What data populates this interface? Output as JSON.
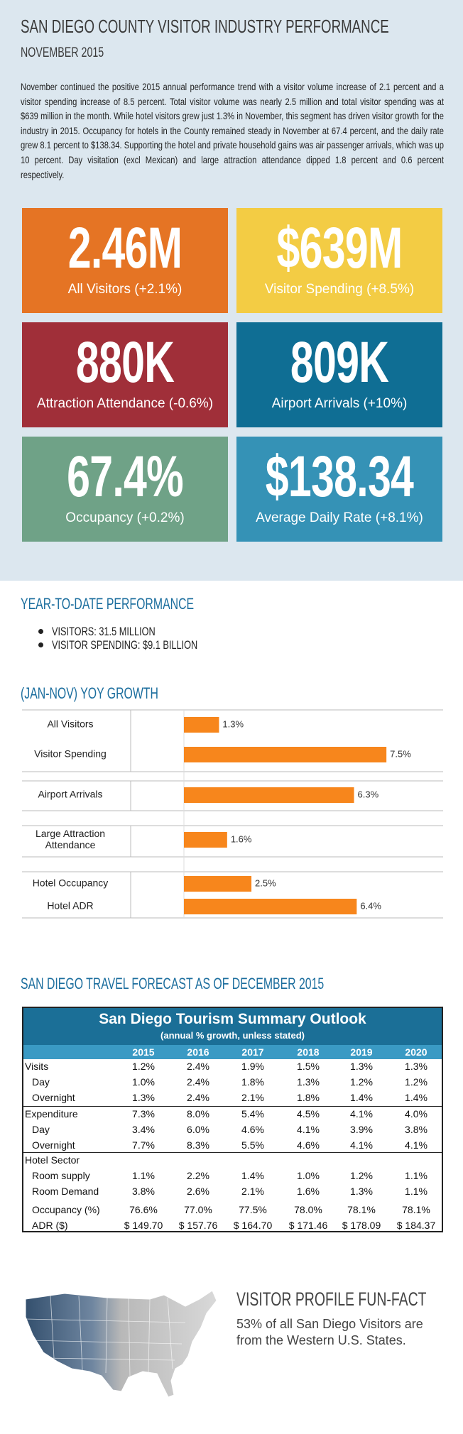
{
  "header": {
    "title": "SAN DIEGO COUNTY VISITOR INDUSTRY PERFORMANCE",
    "subtitle": "NOVEMBER 2015"
  },
  "intro": "November continued the positive 2015 annual performance trend with a visitor volume increase of 2.1 percent and a visitor spending increase of 8.5 percent. Total visitor volume was nearly 2.5 million and total visitor spending was at $639 million in the month. While hotel visitors grew just 1.3% in November, this segment has driven visitor growth for the industry in 2015. Occupancy for hotels in the County remained steady in November at 67.4 percent, and the daily rate grew 8.1 percent to $138.34. Supporting the hotel and private household gains was air passenger arrivals, which was up 10 percent. Day visitation (excl Mexican) and large attraction attendance dipped 1.8 percent and 0.6 percent respectively.",
  "tiles": [
    {
      "value": "2.46M",
      "label": "All Visitors (+2.1%)",
      "color": "#e57424"
    },
    {
      "value": "$639M",
      "label": "Visitor Spending (+8.5%)",
      "color": "#f3cc44"
    },
    {
      "value": "880K",
      "label": "Attraction Attendance (-0.6%)",
      "color": "#a02f39"
    },
    {
      "value": "809K",
      "label": "Airport Arrivals (+10%)",
      "color": "#0f6e94"
    },
    {
      "value": "67.4%",
      "label": "Occupancy (+0.2%)",
      "color": "#6fa287"
    },
    {
      "value": "$138.34",
      "label": "Average Daily Rate (+8.1%)",
      "color": "#3592b6"
    }
  ],
  "ytd": {
    "heading": "YEAR-TO-DATE PERFORMANCE",
    "items": [
      "VISITORS: 31.5 MILLION",
      "VISITOR SPENDING: $9.1 BILLION"
    ]
  },
  "chart_data": {
    "type": "bar",
    "title": "(JAN-NOV) YOY GROWTH",
    "categories": [
      "All Visitors",
      "Visitor Spending",
      "Airport Arrivals",
      "Large Attraction Attendance",
      "Hotel Occupancy",
      "Hotel ADR"
    ],
    "values": [
      1.3,
      7.5,
      6.3,
      1.6,
      2.5,
      6.4
    ],
    "value_labels": [
      "1.3%",
      "7.5%",
      "6.3%",
      "1.6%",
      "2.5%",
      "6.4%"
    ],
    "color": "#f7861c",
    "xlim": [
      0,
      9.6
    ]
  },
  "forecast": {
    "heading": "SAN DIEGO TRAVEL FORECAST AS OF DECEMBER 2015",
    "table": {
      "title": "San Diego Tourism Summary Outlook",
      "subtitle": "(annual % growth, unless stated)",
      "columns": [
        "2015",
        "2016",
        "2017",
        "2018",
        "2019",
        "2020"
      ],
      "rows": [
        {
          "label": "Visits",
          "values": [
            "1.2%",
            "2.4%",
            "1.9%",
            "1.5%",
            "1.3%",
            "1.3%"
          ]
        },
        {
          "label": "Day",
          "values": [
            "1.0%",
            "2.4%",
            "1.8%",
            "1.3%",
            "1.2%",
            "1.2%"
          ]
        },
        {
          "label": "Overnight",
          "values": [
            "1.3%",
            "2.4%",
            "2.1%",
            "1.8%",
            "1.4%",
            "1.4%"
          ]
        },
        {
          "label": "Expenditure",
          "values": [
            "7.3%",
            "8.0%",
            "5.4%",
            "4.5%",
            "4.1%",
            "4.0%"
          ]
        },
        {
          "label": "Day",
          "values": [
            "3.4%",
            "6.0%",
            "4.6%",
            "4.1%",
            "3.9%",
            "3.8%"
          ]
        },
        {
          "label": "Overnight",
          "values": [
            "7.7%",
            "8.3%",
            "5.5%",
            "4.6%",
            "4.1%",
            "4.1%"
          ]
        },
        {
          "label": "Hotel Sector",
          "values": []
        },
        {
          "label": "Room supply",
          "values": [
            "1.1%",
            "2.2%",
            "1.4%",
            "1.0%",
            "1.2%",
            "1.1%"
          ]
        },
        {
          "label": "Room Demand",
          "values": [
            "3.8%",
            "2.6%",
            "2.1%",
            "1.6%",
            "1.3%",
            "1.1%"
          ]
        },
        {
          "label": "Occupancy (%)",
          "values": [
            "76.6%",
            "77.0%",
            "77.5%",
            "78.0%",
            "78.1%",
            "78.1%"
          ]
        },
        {
          "label": "ADR ($)",
          "values": [
            "$ 149.70",
            "$ 157.76",
            "$ 164.70",
            "$ 171.46",
            "$ 178.09",
            "$ 184.37"
          ]
        }
      ]
    }
  },
  "fun_fact": {
    "heading": "VISITOR PROFILE FUN-FACT",
    "text": "53% of all San Diego Visitors are from the Western U.S. States."
  }
}
